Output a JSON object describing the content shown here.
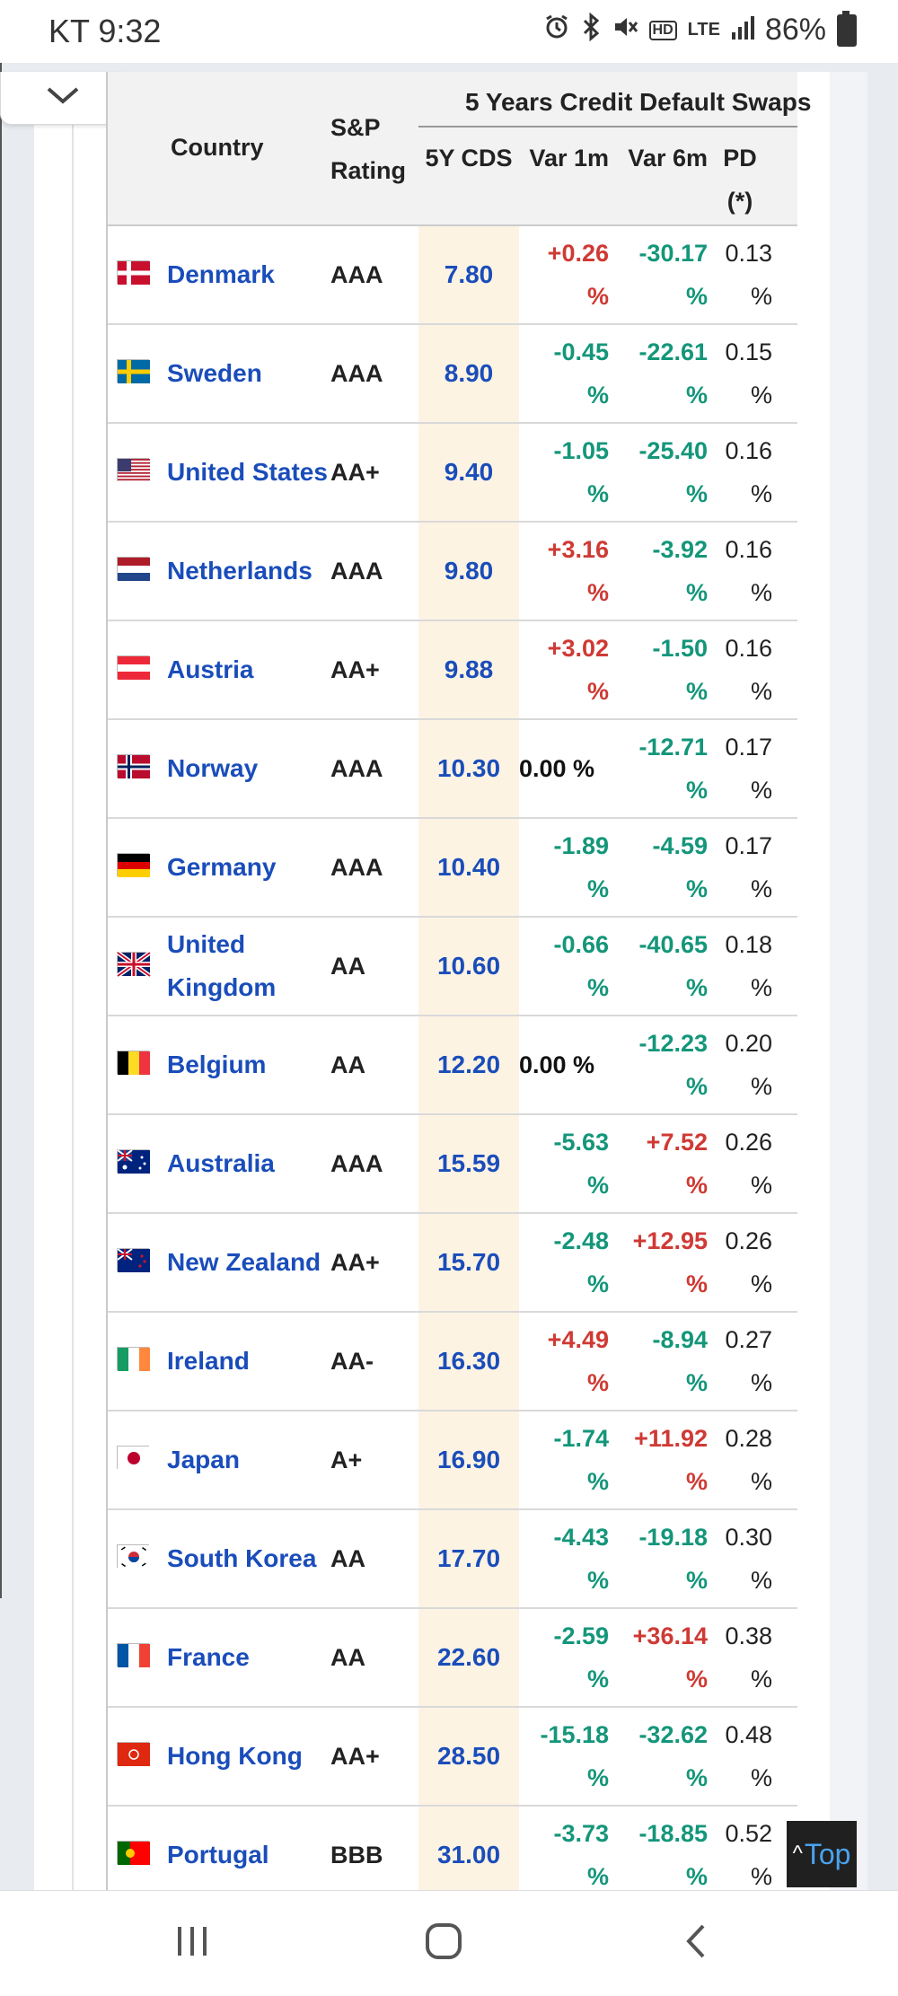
{
  "status_bar": {
    "time": "KT 9:32",
    "battery": "86%",
    "icons": [
      "alarm-icon",
      "bluetooth-icon",
      "mute-icon",
      "hd-icon",
      "lte-icon",
      "signal-icon",
      "battery-icon"
    ],
    "hd_label": "HD",
    "lte_label": "LTE"
  },
  "table": {
    "headers": {
      "country": "Country",
      "sp_rating": "S&P Rating",
      "group": "5 Years Credit Default Swaps",
      "cds": "5Y CDS",
      "var1m": "Var 1m",
      "var6m": "Var 6m",
      "pd": "PD (*)"
    },
    "rows": [
      {
        "country": "Denmark",
        "flag": "dk",
        "rating": "AAA",
        "cds": "7.80",
        "var1m": "+0.26 %",
        "var1m_dir": "pos",
        "var6m": "-30.17 %",
        "var6m_dir": "neg",
        "pd": "0.13 %"
      },
      {
        "country": "Sweden",
        "flag": "se",
        "rating": "AAA",
        "cds": "8.90",
        "var1m": "-0.45 %",
        "var1m_dir": "neg",
        "var6m": "-22.61 %",
        "var6m_dir": "neg",
        "pd": "0.15 %"
      },
      {
        "country": "United States",
        "flag": "us",
        "rating": "AA+",
        "cds": "9.40",
        "var1m": "-1.05 %",
        "var1m_dir": "neg",
        "var6m": "-25.40 %",
        "var6m_dir": "neg",
        "pd": "0.16 %"
      },
      {
        "country": "Netherlands",
        "flag": "nl",
        "rating": "AAA",
        "cds": "9.80",
        "var1m": "+3.16 %",
        "var1m_dir": "pos",
        "var6m": "-3.92 %",
        "var6m_dir": "neg",
        "pd": "0.16 %"
      },
      {
        "country": "Austria",
        "flag": "at",
        "rating": "AA+",
        "cds": "9.88",
        "var1m": "+3.02 %",
        "var1m_dir": "pos",
        "var6m": "-1.50 %",
        "var6m_dir": "neg",
        "pd": "0.16 %"
      },
      {
        "country": "Norway",
        "flag": "no",
        "rating": "AAA",
        "cds": "10.30",
        "var1m": "0.00 %",
        "var1m_dir": "zero",
        "var6m": "-12.71 %",
        "var6m_dir": "neg",
        "pd": "0.17 %"
      },
      {
        "country": "Germany",
        "flag": "de",
        "rating": "AAA",
        "cds": "10.40",
        "var1m": "-1.89 %",
        "var1m_dir": "neg",
        "var6m": "-4.59 %",
        "var6m_dir": "neg",
        "pd": "0.17 %"
      },
      {
        "country": "United Kingdom",
        "flag": "gb",
        "rating": "AA",
        "cds": "10.60",
        "var1m": "-0.66 %",
        "var1m_dir": "neg",
        "var6m": "-40.65 %",
        "var6m_dir": "neg",
        "pd": "0.18 %"
      },
      {
        "country": "Belgium",
        "flag": "be",
        "rating": "AA",
        "cds": "12.20",
        "var1m": "0.00 %",
        "var1m_dir": "zero",
        "var6m": "-12.23 %",
        "var6m_dir": "neg",
        "pd": "0.20 %"
      },
      {
        "country": "Australia",
        "flag": "au",
        "rating": "AAA",
        "cds": "15.59",
        "var1m": "-5.63 %",
        "var1m_dir": "neg",
        "var6m": "+7.52 %",
        "var6m_dir": "pos",
        "pd": "0.26 %"
      },
      {
        "country": "New Zealand",
        "flag": "nz",
        "rating": "AA+",
        "cds": "15.70",
        "var1m": "-2.48 %",
        "var1m_dir": "neg",
        "var6m": "+12.95 %",
        "var6m_dir": "pos",
        "pd": "0.26 %"
      },
      {
        "country": "Ireland",
        "flag": "ie",
        "rating": "AA-",
        "cds": "16.30",
        "var1m": "+4.49 %",
        "var1m_dir": "pos",
        "var6m": "-8.94 %",
        "var6m_dir": "neg",
        "pd": "0.27 %"
      },
      {
        "country": "Japan",
        "flag": "jp",
        "rating": "A+",
        "cds": "16.90",
        "var1m": "-1.74 %",
        "var1m_dir": "neg",
        "var6m": "+11.92 %",
        "var6m_dir": "pos",
        "pd": "0.28 %"
      },
      {
        "country": "South Korea",
        "flag": "kr",
        "rating": "AA",
        "cds": "17.70",
        "var1m": "-4.43 %",
        "var1m_dir": "neg",
        "var6m": "-19.18 %",
        "var6m_dir": "neg",
        "pd": "0.30 %"
      },
      {
        "country": "France",
        "flag": "fr",
        "rating": "AA",
        "cds": "22.60",
        "var1m": "-2.59 %",
        "var1m_dir": "neg",
        "var6m": "+36.14 %",
        "var6m_dir": "pos",
        "pd": "0.38 %"
      },
      {
        "country": "Hong Kong",
        "flag": "hk",
        "rating": "AA+",
        "cds": "28.50",
        "var1m": "-15.18 %",
        "var1m_dir": "neg",
        "var6m": "-32.62 %",
        "var6m_dir": "neg",
        "pd": "0.48 %"
      },
      {
        "country": "Portugal",
        "flag": "pt",
        "rating": "BBB",
        "cds": "31.00",
        "var1m": "-3.73 %",
        "var1m_dir": "neg",
        "var6m": "-18.85 %",
        "var6m_dir": "neg",
        "pd": "0.52 %"
      }
    ]
  },
  "top_button": {
    "label": "Top"
  },
  "colors": {
    "positive": "#cf3a34",
    "negative": "#14967a",
    "link": "#1a4dba",
    "cds_bg": "#fdf3e3"
  },
  "navbar": {
    "icons": [
      "recent-apps-icon",
      "home-icon",
      "back-icon"
    ]
  }
}
